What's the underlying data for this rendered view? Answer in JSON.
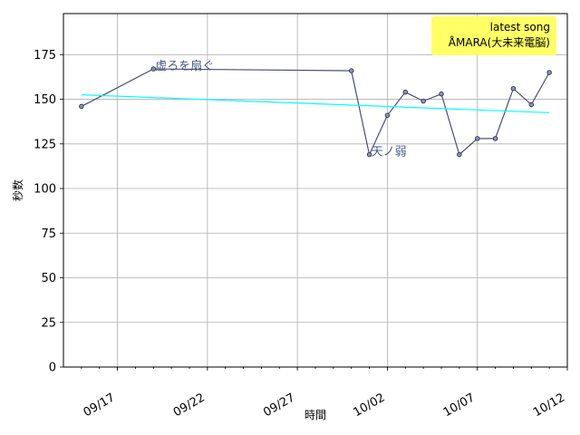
{
  "chart_data": {
    "type": "line",
    "xlabel": "時間",
    "ylabel": "秒数",
    "xlim": [
      "2024-09-14",
      "2024-10-12"
    ],
    "ylim": [
      0,
      198
    ],
    "grid": true,
    "x_ticks": [
      {
        "date": "2024-09-17",
        "label": "09/17"
      },
      {
        "date": "2024-09-22",
        "label": "09/22"
      },
      {
        "date": "2024-09-27",
        "label": "09/27"
      },
      {
        "date": "2024-10-02",
        "label": "10/02"
      },
      {
        "date": "2024-10-07",
        "label": "10/07"
      },
      {
        "date": "2024-10-12",
        "label": "10/12"
      }
    ],
    "y_ticks": [
      0,
      25,
      50,
      75,
      100,
      125,
      150,
      175
    ],
    "series": [
      {
        "color": "#4b4f73",
        "marker": "circle",
        "points": [
          {
            "x": "2024-09-15",
            "y": 146
          },
          {
            "x": "2024-09-19",
            "y": 167
          },
          {
            "x": "2024-09-30",
            "y": 166
          },
          {
            "x": "2024-10-01",
            "y": 119
          },
          {
            "x": "2024-10-02",
            "y": 141
          },
          {
            "x": "2024-10-03",
            "y": 154
          },
          {
            "x": "2024-10-04",
            "y": 149
          },
          {
            "x": "2024-10-05",
            "y": 153
          },
          {
            "x": "2024-10-06",
            "y": 119
          },
          {
            "x": "2024-10-07",
            "y": 128
          },
          {
            "x": "2024-10-08",
            "y": 128
          },
          {
            "x": "2024-10-09",
            "y": 156
          },
          {
            "x": "2024-10-10",
            "y": 147
          },
          {
            "x": "2024-10-11",
            "y": 165
          }
        ]
      },
      {
        "color": "#00ffff",
        "marker": "none",
        "points": [
          {
            "x": "2024-09-15",
            "y": 152.5
          },
          {
            "x": "2024-10-11",
            "y": 142.5
          }
        ]
      }
    ],
    "annotations": [
      {
        "text": "虚ろを扇ぐ",
        "x": "2024-09-19",
        "y": 167
      },
      {
        "text": "天ノ弱",
        "x": "2024-10-01",
        "y": 119
      }
    ],
    "legend": {
      "placement": "top-right",
      "background": "#ffff66",
      "lines": [
        "latest song",
        "ÅMARA(大未来電脳)"
      ]
    }
  }
}
